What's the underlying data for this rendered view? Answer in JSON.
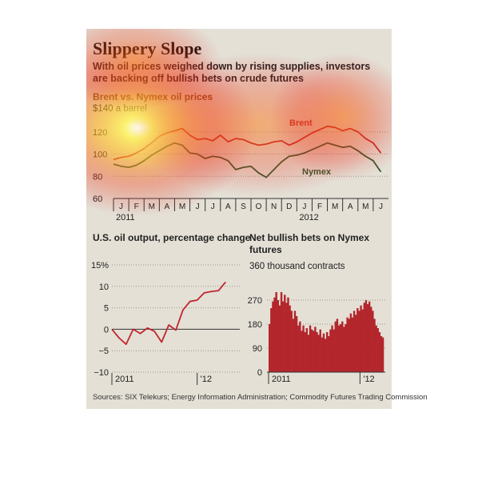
{
  "title": "Slippery Slope",
  "subtitle": "With oil prices weighed down by rising supplies, investors are backing off bullish bets on crude futures",
  "source": "Sources: SIX Telekurs; Energy Information Administration; Commodity Futures Trading Commission",
  "colors": {
    "panel": "#e4e0d6",
    "brent": "#c0262e",
    "nymex": "#2e5a2c",
    "bars": "#b3262c",
    "grid": "#9a968c"
  },
  "chart_data": [
    {
      "type": "line",
      "title": "Brent vs. Nymex oil prices",
      "unit_label": "$140 a barrel",
      "ylim": [
        60,
        140
      ],
      "yticks": [
        60,
        80,
        100,
        120
      ],
      "xlim": [
        0,
        18
      ],
      "month_ticks": [
        "J",
        "F",
        "M",
        "A",
        "M",
        "J",
        "J",
        "A",
        "S",
        "O",
        "N",
        "D",
        "J",
        "F",
        "M",
        "A",
        "M",
        "J"
      ],
      "year_labels": [
        {
          "label": "2011",
          "x": 0
        },
        {
          "label": "2012",
          "x": 12
        }
      ],
      "grid": true,
      "series": [
        {
          "name": "Brent",
          "x": [
            0,
            0.5,
            1,
            1.5,
            2,
            2.5,
            3,
            3.5,
            4,
            4.5,
            5,
            5.5,
            6,
            6.5,
            7,
            7.5,
            8,
            8.5,
            9,
            9.5,
            10,
            10.5,
            11,
            11.5,
            12,
            12.5,
            13,
            13.5,
            14,
            14.5,
            15,
            15.5,
            16,
            16.5,
            17,
            17.5
          ],
          "y": [
            95,
            97,
            98,
            101,
            105,
            110,
            116,
            119,
            121,
            123,
            117,
            113,
            114,
            112,
            117,
            111,
            114,
            113,
            110,
            108,
            109,
            111,
            112,
            108,
            111,
            115,
            119,
            122,
            125,
            124,
            121,
            123,
            120,
            114,
            110,
            101
          ]
        },
        {
          "name": "Nymex",
          "x": [
            0,
            0.5,
            1,
            1.5,
            2,
            2.5,
            3,
            3.5,
            4,
            4.5,
            5,
            5.5,
            6,
            6.5,
            7,
            7.5,
            8,
            8.5,
            9,
            9.5,
            10,
            10.5,
            11,
            11.5,
            12,
            12.5,
            13,
            13.5,
            14,
            14.5,
            15,
            15.5,
            16,
            16.5,
            17,
            17.5
          ],
          "y": [
            91,
            89,
            88,
            90,
            94,
            99,
            103,
            107,
            110,
            108,
            101,
            100,
            96,
            98,
            97,
            94,
            86,
            88,
            89,
            83,
            79,
            86,
            93,
            98,
            99,
            101,
            104,
            107,
            110,
            108,
            106,
            107,
            103,
            98,
            94,
            84
          ]
        }
      ]
    },
    {
      "type": "line",
      "title": "U.S. oil output, percentage change",
      "ylim": [
        -10,
        15
      ],
      "yticks": [
        -10,
        -5,
        0,
        5,
        10,
        15
      ],
      "ytick_labels": [
        "−10",
        "−5",
        "0",
        "5",
        "10",
        "15%"
      ],
      "xlim": [
        0,
        18
      ],
      "x_labels": [
        {
          "label": "2011",
          "x": 0
        },
        {
          "label": "'12",
          "x": 12
        }
      ],
      "grid": true,
      "series": [
        {
          "x": [
            0,
            1,
            2,
            3,
            4,
            5,
            6,
            7,
            8,
            9,
            10,
            11,
            12,
            13,
            14,
            15,
            16
          ],
          "y": [
            0,
            -2,
            -3.5,
            0,
            -1,
            0.3,
            -0.5,
            -3,
            1,
            -0.2,
            4.5,
            6.5,
            6.8,
            8.5,
            8.8,
            9,
            11
          ]
        }
      ]
    },
    {
      "type": "bar",
      "title": "Net bullish bets on Nymex futures",
      "unit_label": "360 thousand contracts",
      "ylim": [
        0,
        360
      ],
      "yticks": [
        0,
        90,
        180,
        270
      ],
      "x_labels": [
        {
          "label": "2011",
          "x": 0
        },
        {
          "label": "'12",
          "x": 54
        }
      ],
      "values": [
        180,
        240,
        265,
        280,
        300,
        270,
        250,
        300,
        265,
        290,
        260,
        280,
        250,
        230,
        200,
        230,
        210,
        175,
        190,
        155,
        175,
        150,
        165,
        140,
        175,
        160,
        155,
        170,
        150,
        140,
        160,
        130,
        145,
        125,
        150,
        135,
        160,
        175,
        160,
        190,
        200,
        175,
        180,
        190,
        170,
        180,
        205,
        200,
        220,
        205,
        230,
        215,
        240,
        230,
        250,
        235,
        260,
        270,
        255,
        265,
        245,
        230,
        200,
        175,
        165,
        150,
        135,
        130
      ]
    }
  ]
}
